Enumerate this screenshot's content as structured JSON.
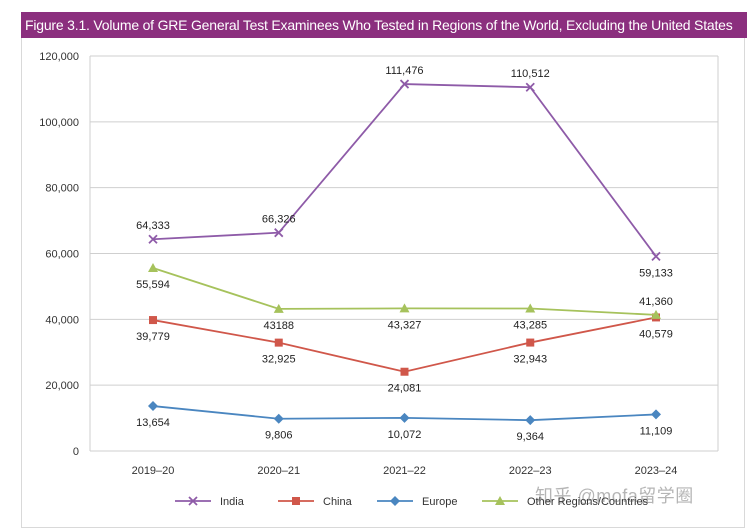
{
  "colors": {
    "title_bg": "#8B2F7E",
    "grid": "#cfcfcf",
    "axis_text": "#333333"
  },
  "watermark": "知乎 @mofa留学圈",
  "chart_data": {
    "type": "line",
    "title": "Figure 3.1. Volume of GRE General Test Examinees Who Tested in Regions of the World, Excluding the United States",
    "xlabel": "",
    "ylabel": "",
    "categories": [
      "2019–20",
      "2020–21",
      "2021–22",
      "2022–23",
      "2023–24"
    ],
    "ylim": [
      0,
      120000
    ],
    "yticks": [
      0,
      20000,
      40000,
      60000,
      80000,
      100000,
      120000
    ],
    "ytick_labels": [
      "0",
      "20,000",
      "40,000",
      "60,000",
      "80,000",
      "100,000",
      "120,000"
    ],
    "grid": true,
    "legend_position": "bottom",
    "series": [
      {
        "name": "India",
        "color": "#8E5BA8",
        "marker": "x",
        "values": [
          64333,
          66326,
          111476,
          110512,
          59133
        ],
        "labels": [
          "64,333",
          "66,326",
          "111,476",
          "110,512",
          "59,133"
        ],
        "label_pos": [
          "above",
          "above",
          "above",
          "above",
          "below"
        ]
      },
      {
        "name": "China",
        "color": "#D0574A",
        "marker": "square",
        "values": [
          39779,
          32925,
          24081,
          32943,
          40579
        ],
        "labels": [
          "39,779",
          "32,925",
          "24,081",
          "32,943",
          "40,579"
        ],
        "label_pos": [
          "below",
          "below",
          "below",
          "below",
          "below"
        ]
      },
      {
        "name": "Europe",
        "color": "#4A86C0",
        "marker": "diamond",
        "values": [
          13654,
          9806,
          10072,
          9364,
          11109
        ],
        "labels": [
          "13,654",
          "9,806",
          "10,072",
          "9,364",
          "11,109"
        ],
        "label_pos": [
          "below",
          "below",
          "below",
          "below",
          "below"
        ]
      },
      {
        "name": "Other Regions/Countries",
        "color": "#A6C25C",
        "marker": "triangle",
        "values": [
          55594,
          43188,
          43327,
          43285,
          41360
        ],
        "labels": [
          "55,594",
          "43188",
          "43,327",
          "43,285",
          "41,360"
        ],
        "label_pos": [
          "below",
          "below",
          "below",
          "below",
          "above"
        ]
      }
    ]
  }
}
